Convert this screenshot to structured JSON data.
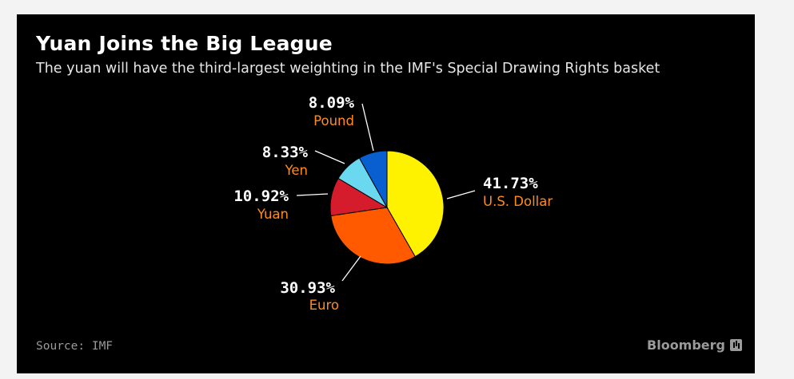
{
  "chart_data": {
    "type": "pie",
    "title": "Yuan Joins the Big League",
    "subtitle": "The yuan will have the third-largest weighting in the IMF's Special Drawing Rights basket",
    "slices": [
      {
        "label": "U.S. Dollar",
        "value": 41.73,
        "display": "41.73%",
        "color": "#fff200"
      },
      {
        "label": "Euro",
        "value": 30.93,
        "display": "30.93%",
        "color": "#ff5a00"
      },
      {
        "label": "Yuan",
        "value": 10.92,
        "display": "10.92%",
        "color": "#d41c2c"
      },
      {
        "label": "Yen",
        "value": 8.33,
        "display": "8.33%",
        "color": "#6ad8ee"
      },
      {
        "label": "Pound",
        "value": 8.09,
        "display": "8.09%",
        "color": "#0a5fd0"
      }
    ],
    "label_color": "#ff8c1a",
    "source": "Source: IMF"
  },
  "footer": {
    "brand": "Bloomberg"
  }
}
